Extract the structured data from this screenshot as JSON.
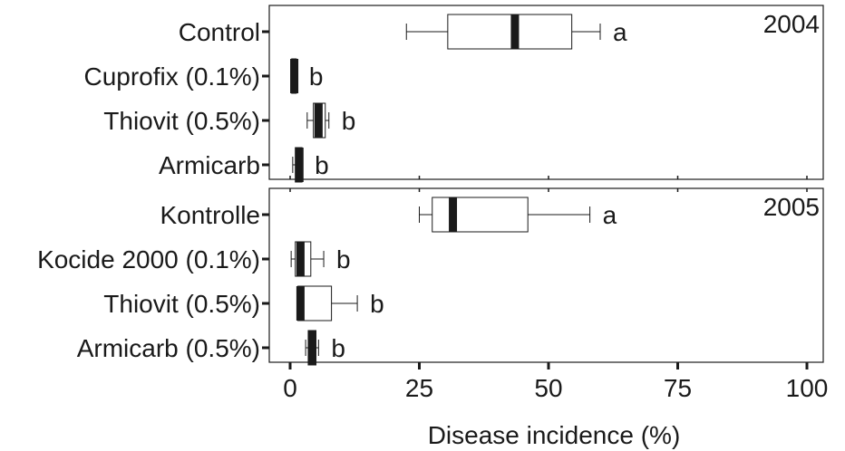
{
  "chart_data": {
    "type": "boxplot",
    "xlabel": "Disease incidence (%)",
    "xlim": [
      0,
      100
    ],
    "xticks": [
      "0",
      "25",
      "50",
      "75",
      "100"
    ],
    "grid": false,
    "panels": [
      {
        "year": "2004",
        "groups": [
          {
            "label": "Control",
            "min": 22.5,
            "q1": 30.5,
            "median": 43.5,
            "q3": 54.5,
            "max": 60.0,
            "sig": "a"
          },
          {
            "label": "Cuprofix (0.1%)",
            "min": 0.3,
            "q1": 0.3,
            "median": 0.8,
            "q3": 1.2,
            "max": 1.2,
            "sig": "b"
          },
          {
            "label": "Thiovit (0.5%)",
            "min": 3.3,
            "q1": 4.5,
            "median": 5.5,
            "q3": 6.8,
            "max": 7.5,
            "sig": "b"
          },
          {
            "label": "Armicarb",
            "min": 0.5,
            "q1": 1.0,
            "median": 1.8,
            "q3": 2.3,
            "max": 2.3,
            "sig": "b"
          }
        ]
      },
      {
        "year": "2005",
        "groups": [
          {
            "label": "Kontrolle",
            "min": 25.0,
            "q1": 27.5,
            "median": 31.5,
            "q3": 46.0,
            "max": 58.0,
            "sig": "a"
          },
          {
            "label": "Kocide 2000 (0.1%)",
            "min": 0.2,
            "q1": 1.0,
            "median": 2.0,
            "q3": 4.0,
            "max": 6.5,
            "sig": "b"
          },
          {
            "label": "Thiovit (0.5%)",
            "min": 1.5,
            "q1": 1.5,
            "median": 2.0,
            "q3": 8.0,
            "max": 13.0,
            "sig": "b"
          },
          {
            "label": "Armicarb (0.5%)",
            "min": 3.0,
            "q1": 3.5,
            "median": 4.3,
            "q3": 5.0,
            "max": 5.5,
            "sig": "b"
          }
        ]
      }
    ]
  }
}
